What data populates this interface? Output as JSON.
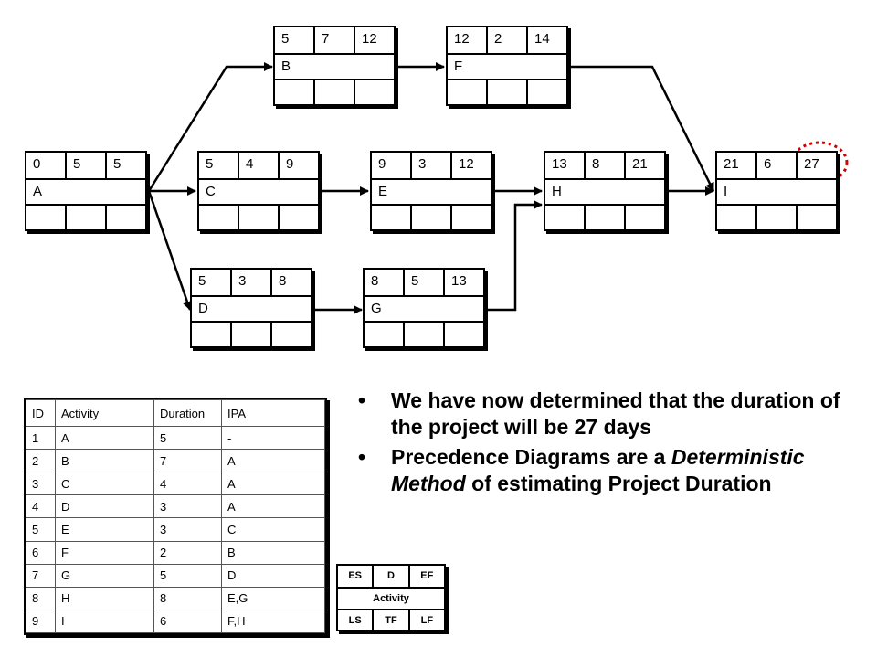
{
  "nodes": {
    "A": {
      "es": "0",
      "d": "5",
      "ef": "5",
      "name": "A"
    },
    "B": {
      "es": "5",
      "d": "7",
      "ef": "12",
      "name": "B"
    },
    "C": {
      "es": "5",
      "d": "4",
      "ef": "9",
      "name": "C"
    },
    "D": {
      "es": "5",
      "d": "3",
      "ef": "8",
      "name": "D"
    },
    "E": {
      "es": "9",
      "d": "3",
      "ef": "12",
      "name": "E"
    },
    "F": {
      "es": "12",
      "d": "2",
      "ef": "14",
      "name": "F"
    },
    "G": {
      "es": "8",
      "d": "5",
      "ef": "13",
      "name": "G"
    },
    "H": {
      "es": "13",
      "d": "8",
      "ef": "21",
      "name": "H"
    },
    "I": {
      "es": "21",
      "d": "6",
      "ef": "27",
      "name": "I"
    }
  },
  "highlight_color": "#cc0000",
  "table": {
    "headers": [
      "ID",
      "Activity",
      "Duration",
      "IPA"
    ],
    "rows": [
      [
        "1",
        "A",
        "5",
        "-"
      ],
      [
        "2",
        "B",
        "7",
        "A"
      ],
      [
        "3",
        "C",
        "4",
        "A"
      ],
      [
        "4",
        "D",
        "3",
        "A"
      ],
      [
        "5",
        "E",
        "3",
        "C"
      ],
      [
        "6",
        "F",
        "2",
        "B"
      ],
      [
        "7",
        "G",
        "5",
        "D"
      ],
      [
        "8",
        "H",
        "8",
        "E,G"
      ],
      [
        "9",
        "I",
        "6",
        "F,H"
      ]
    ]
  },
  "bullets": {
    "b1": "We have now determined that the duration of the project will be 27 days",
    "b2_pre": "Precedence Diagrams are a ",
    "b2_em": "Deterministic Method",
    "b2_post": " of estimating Project Duration"
  },
  "legend": {
    "es": "ES",
    "d": "D",
    "ef": "EF",
    "activity": "Activity",
    "ls": "LS",
    "tf": "TF",
    "lf": "LF"
  }
}
